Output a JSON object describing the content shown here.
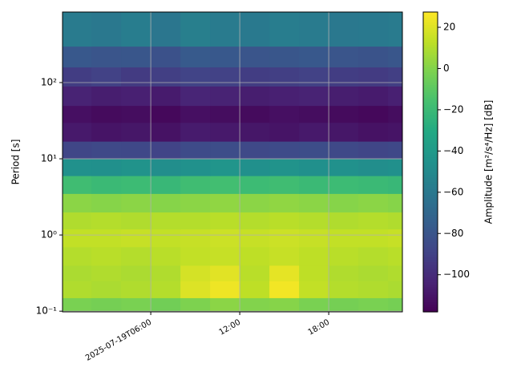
{
  "chart_data": {
    "type": "heatmap",
    "y_label": "Period [s]",
    "colorbar_label": "Amplitude [m²/s⁴/Hz] [dB]",
    "x_edges": [
      "2025-07-19T00:03",
      "2025-07-19T02:00",
      "2025-07-19T04:00",
      "2025-07-19T06:00",
      "2025-07-19T08:00",
      "2025-07-19T10:00",
      "2025-07-19T12:00",
      "2025-07-19T14:00",
      "2025-07-19T16:00",
      "2025-07-19T18:00",
      "2025-07-19T20:00",
      "2025-07-19T22:00",
      "2025-07-19T22:58"
    ],
    "y_edges": [
      0.098,
      0.15,
      0.25,
      0.4,
      0.7,
      1.2,
      2,
      3.5,
      6,
      10,
      17,
      30,
      50,
      90,
      160,
      300,
      843
    ],
    "values": [
      [
        -2,
        -3,
        -2,
        -4,
        -1,
        2,
        0,
        1,
        -2,
        -3,
        -2,
        -3
      ],
      [
        10,
        9,
        10,
        11,
        20,
        24,
        13,
        25,
        14,
        11,
        10,
        9
      ],
      [
        9,
        10,
        9,
        10,
        18,
        21,
        12,
        22,
        13,
        10,
        9,
        10
      ],
      [
        11,
        12,
        11,
        12,
        14,
        15,
        13,
        15,
        13,
        12,
        11,
        12
      ],
      [
        14,
        14,
        15,
        14,
        15,
        16,
        15,
        16,
        15,
        14,
        14,
        15
      ],
      [
        10,
        11,
        10,
        11,
        11,
        12,
        11,
        12,
        11,
        10,
        11,
        10
      ],
      [
        2,
        1,
        2,
        1,
        2,
        3,
        2,
        3,
        2,
        1,
        2,
        1
      ],
      [
        -18,
        -20,
        -19,
        -21,
        -18,
        -17,
        -19,
        -18,
        -20,
        -19,
        -20,
        -21
      ],
      [
        -45,
        -46,
        -44,
        -47,
        -45,
        -43,
        -46,
        -44,
        -46,
        -45,
        -47,
        -46
      ],
      [
        -88,
        -86,
        -87,
        -89,
        -85,
        -84,
        -86,
        -85,
        -84,
        -86,
        -88,
        -87
      ],
      [
        -108,
        -110,
        -109,
        -111,
        -107,
        -108,
        -109,
        -110,
        -108,
        -109,
        -111,
        -110
      ],
      [
        -112,
        -114,
        -113,
        -115,
        -112,
        -113,
        -114,
        -112,
        -113,
        -114,
        -115,
        -113
      ],
      [
        -104,
        -106,
        -105,
        -107,
        -103,
        -104,
        -106,
        -105,
        -104,
        -106,
        -107,
        -105
      ],
      [
        -92,
        -90,
        -93,
        -91,
        -89,
        -90,
        -92,
        -91,
        -90,
        -92,
        -93,
        -91
      ],
      [
        -78,
        -80,
        -79,
        -82,
        -77,
        -78,
        -80,
        -79,
        -78,
        -80,
        -81,
        -79
      ],
      [
        -58,
        -60,
        -57,
        -61,
        -56,
        -58,
        -59,
        -57,
        -58,
        -60,
        -59,
        -58
      ]
    ],
    "colormap": "viridis",
    "xlim": [
      "2025-07-19T00:03",
      "2025-07-19T22:58"
    ],
    "xticks": [
      "2025-07-19T06:00",
      {
        "value": "2025-07-19T12:00",
        "label": "12:00"
      },
      {
        "value": "2025-07-19T18:00",
        "label": "18:00"
      }
    ],
    "ylim": [
      0.098,
      843
    ],
    "y_log": true,
    "yticks": [
      {
        "value": 0.1,
        "label": "10⁻¹"
      },
      {
        "value": 1,
        "label": "10⁰"
      },
      {
        "value": 10,
        "label": "10¹"
      },
      {
        "value": 100,
        "label": "10²"
      }
    ],
    "clim": [
      -118,
      27.4
    ],
    "cticks": [
      {
        "value": -100,
        "label": "−100"
      },
      {
        "value": -80,
        "label": "−80"
      },
      {
        "value": -60,
        "label": "−60"
      },
      {
        "value": -40,
        "label": "−40"
      },
      {
        "value": -20,
        "label": "−20"
      },
      0,
      20
    ],
    "grid": true
  }
}
